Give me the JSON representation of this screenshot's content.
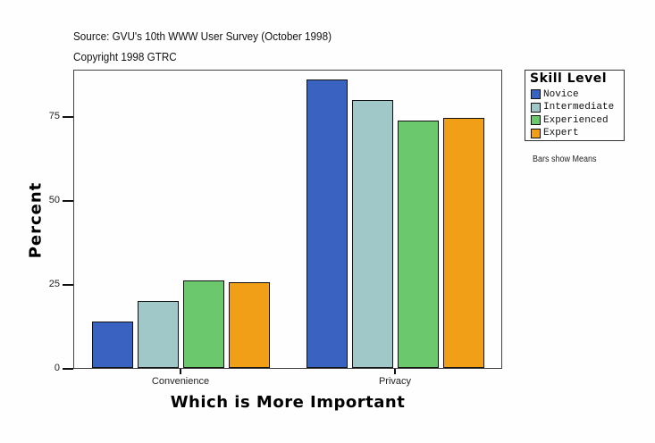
{
  "header": {
    "source": "Source: GVU's 10th WWW User Survey (October 1998)",
    "copyright": "Copyright 1998 GTRC"
  },
  "note": "Bars show Means",
  "legend": {
    "title": "Skill Level",
    "items": [
      {
        "label": "Novice",
        "color": "#3a62c0"
      },
      {
        "label": "Intermediate",
        "color": "#a0c8c8"
      },
      {
        "label": "Experienced",
        "color": "#6cc86c"
      },
      {
        "label": "Expert",
        "color": "#f29f18"
      }
    ]
  },
  "axes": {
    "xlabel": "Which is More Important",
    "ylabel": "Percent",
    "yticks": [
      "0",
      "25",
      "50",
      "75"
    ],
    "xticks": [
      "Convenience",
      "Privacy"
    ]
  },
  "chart_data": {
    "type": "bar",
    "title": "",
    "subtitle": "Source: GVU's 10th WWW User Survey (October 1998) / Copyright 1998 GTRC",
    "categories": [
      "Convenience",
      "Privacy"
    ],
    "series": [
      {
        "name": "Novice",
        "color": "#3a62c0",
        "values": [
          13.8,
          85.9
        ]
      },
      {
        "name": "Intermediate",
        "color": "#a0c8c8",
        "values": [
          19.9,
          79.8
        ]
      },
      {
        "name": "Experienced",
        "color": "#6cc86c",
        "values": [
          26.1,
          73.7
        ]
      },
      {
        "name": "Expert",
        "color": "#f29f18",
        "values": [
          25.5,
          74.5
        ]
      }
    ],
    "xlabel": "Which is More Important",
    "ylabel": "Percent",
    "ylim": [
      0,
      89
    ],
    "yticks": [
      0,
      25,
      50,
      75
    ],
    "grid": false,
    "legend_position": "right",
    "annotations": [
      "Bars show Means"
    ]
  }
}
